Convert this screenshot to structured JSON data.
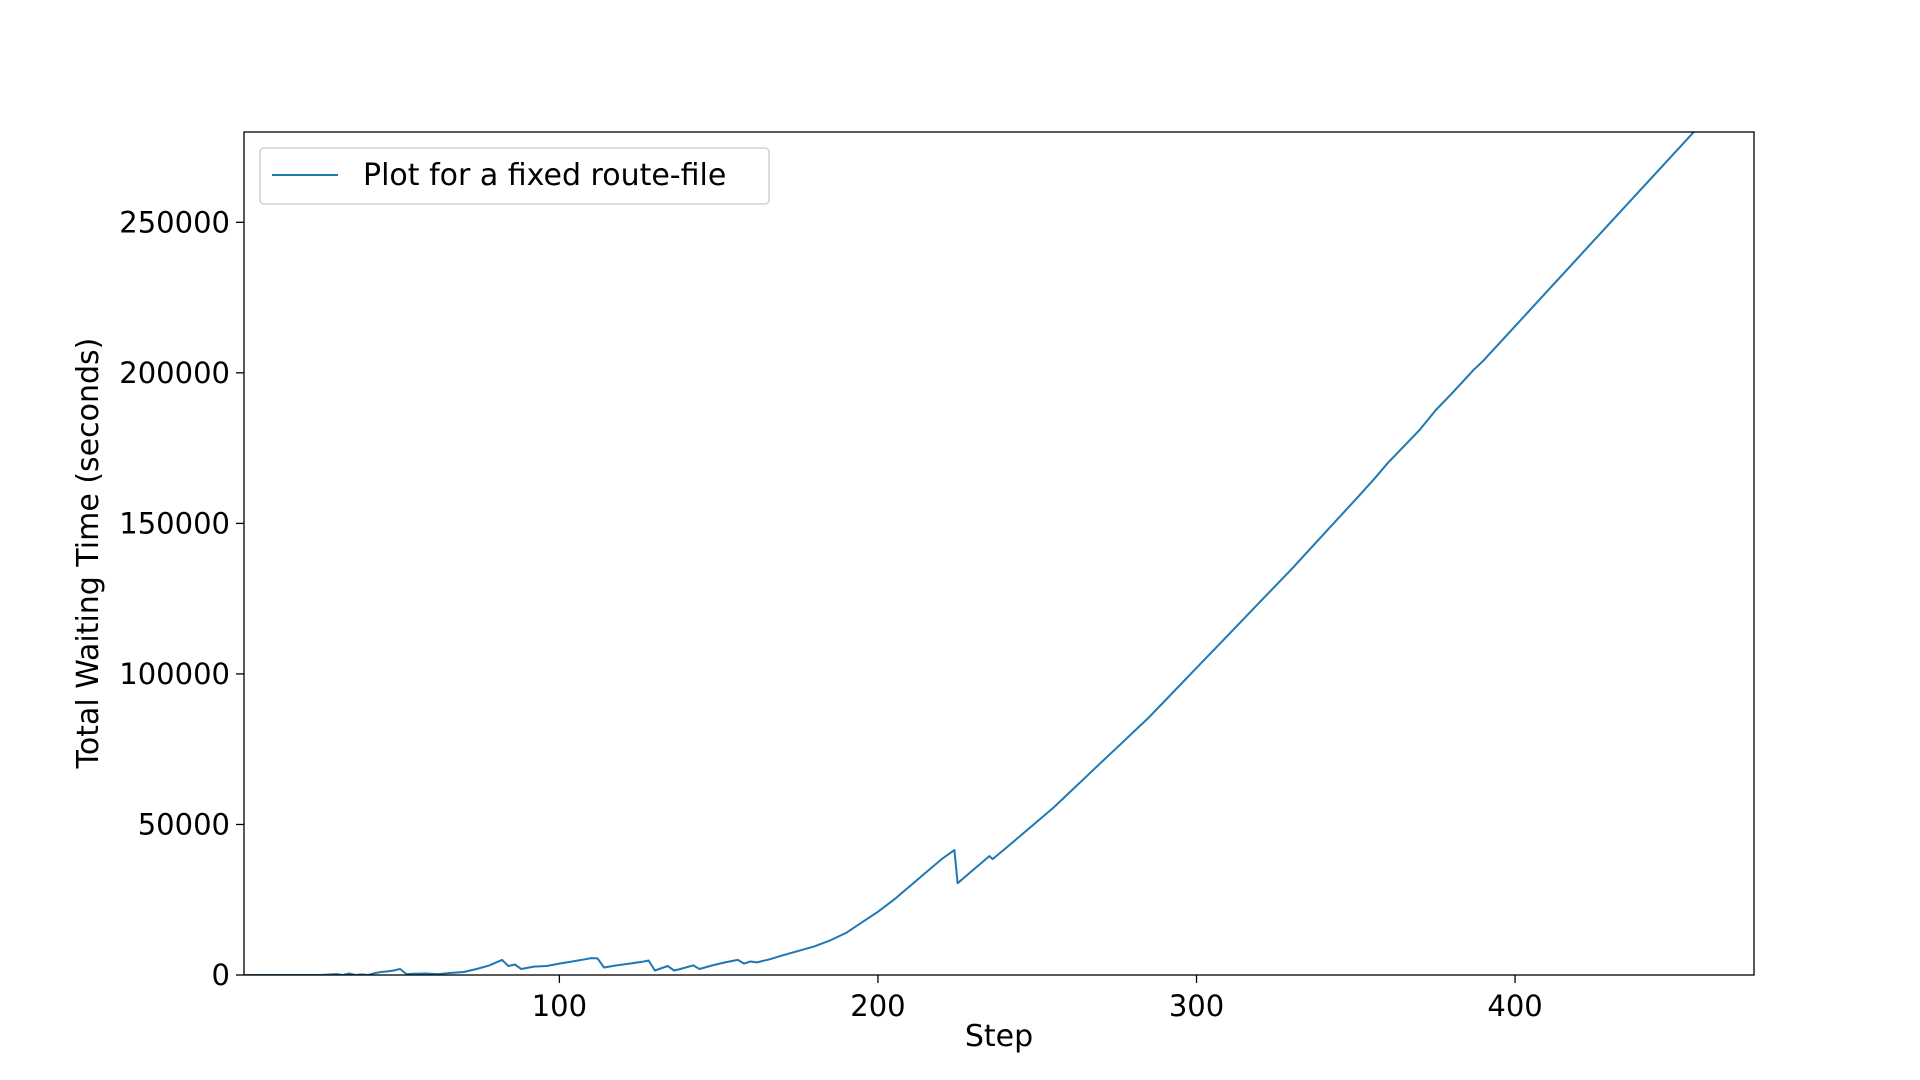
{
  "chart_data": {
    "type": "line",
    "title": "",
    "xlabel": "Step",
    "ylabel": "Total Waiting Time (seconds)",
    "xlim": [
      1,
      475
    ],
    "ylim": [
      0,
      280000
    ],
    "xticks": [
      100,
      200,
      300,
      400
    ],
    "yticks": [
      0,
      50000,
      100000,
      150000,
      200000,
      250000
    ],
    "grid": false,
    "legend": {
      "placement": "top-left"
    },
    "colors": {
      "series": "#1f77b4"
    },
    "series": [
      {
        "name": "Plot for a fixed route-file",
        "x": [
          1,
          25,
          30,
          32,
          34,
          36,
          38,
          40,
          42,
          44,
          46,
          48,
          50,
          52,
          54,
          58,
          62,
          66,
          70,
          74,
          78,
          82,
          84,
          86,
          88,
          92,
          96,
          100,
          104,
          108,
          110,
          112,
          114,
          118,
          122,
          126,
          128,
          130,
          134,
          136,
          138,
          142,
          144,
          148,
          152,
          156,
          158,
          160,
          162,
          166,
          170,
          175,
          180,
          185,
          190,
          195,
          200,
          205,
          210,
          215,
          220,
          224,
          225,
          230,
          235,
          236,
          240,
          245,
          250,
          255,
          260,
          265,
          270,
          275,
          280,
          285,
          290,
          300,
          310,
          320,
          330,
          340,
          350,
          356,
          360,
          370,
          375,
          380,
          387,
          390,
          400,
          410,
          420,
          430,
          440,
          450,
          460,
          470,
          475
        ],
        "y": [
          0,
          0,
          300,
          0,
          500,
          0,
          200,
          0,
          600,
          1000,
          1200,
          1500,
          2000,
          300,
          400,
          500,
          300,
          700,
          1000,
          2000,
          3200,
          5000,
          3000,
          3500,
          2000,
          2800,
          3000,
          3800,
          4500,
          5200,
          5600,
          5500,
          2500,
          3200,
          3800,
          4400,
          4800,
          1500,
          3000,
          1500,
          2000,
          3200,
          2000,
          3200,
          4200,
          5000,
          3800,
          4500,
          4200,
          5200,
          6500,
          8000,
          9500,
          11500,
          14000,
          17500,
          21000,
          25000,
          29500,
          34000,
          38500,
          41500,
          30500,
          35000,
          39500,
          38500,
          42000,
          46500,
          51000,
          55500,
          60500,
          65500,
          70500,
          75500,
          80500,
          85500,
          91000,
          102000,
          113000,
          124000,
          135000,
          146500,
          158000,
          165000,
          170000,
          181000,
          187500,
          193000,
          201000,
          204000,
          215500,
          227000,
          238500,
          250000,
          261500,
          273000,
          284500,
          296000,
          302000
        ]
      }
    ]
  }
}
